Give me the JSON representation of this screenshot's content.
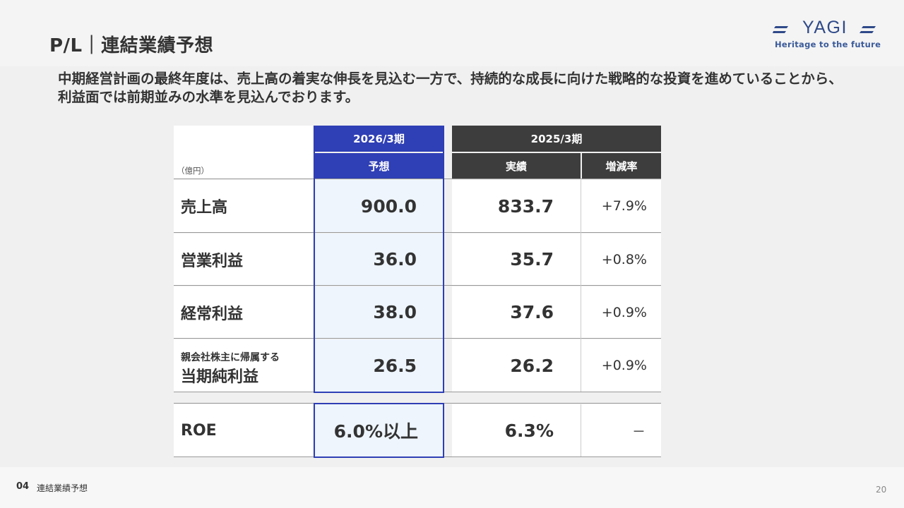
{
  "header": {
    "title": "P/L｜連結業績予想",
    "logo_text": "Heritage to the future",
    "logo_wordmark": "YAGI"
  },
  "lead": "中期経営計画の最終年度は、売上高の着実な伸長を見込む一方で、持続的な成長に向けた戦略的な投資を進めていることから、利益面では前期並みの水準を見込んでおります。",
  "table": {
    "unit": "（億円）",
    "col_forecast_period": "2026/3期",
    "col_forecast_label": "予想",
    "col_actual_period": "2025/3期",
    "col_actual_label": "実績",
    "col_change_label": "増減率",
    "rows": [
      {
        "label": "売上高",
        "forecast": "900.0",
        "actual": "833.7",
        "change": "+7.9%"
      },
      {
        "label": "営業利益",
        "forecast": "36.0",
        "actual": "35.7",
        "change": "+0.8%"
      },
      {
        "label": "経常利益",
        "forecast": "38.0",
        "actual": "37.6",
        "change": "+0.9%"
      },
      {
        "label_small": "親会社株主に帰属する",
        "label": "当期純利益",
        "forecast": "26.5",
        "actual": "26.2",
        "change": "+0.9%"
      }
    ],
    "roe": {
      "label": "ROE",
      "forecast": "6.0%以上",
      "actual": "6.3%",
      "change": "－"
    }
  },
  "footer": {
    "section_number": "04",
    "section_label": "連結業績予想",
    "page_number": "20"
  },
  "colors": {
    "accent": "#2f3fb5",
    "dark_header": "#3d3d3d",
    "forecast_bg": "#eef5fd"
  }
}
